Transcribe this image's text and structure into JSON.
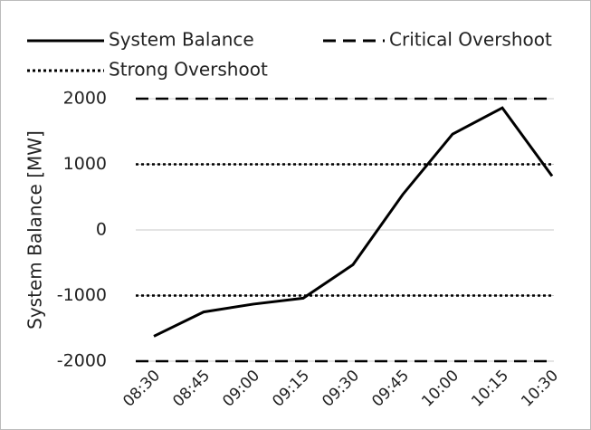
{
  "chart_data": {
    "type": "line",
    "y_label": "System Balance [MW]",
    "categories": [
      "08:30",
      "08:45",
      "09:00",
      "09:15",
      "09:30",
      "09:45",
      "10:00",
      "10:15",
      "10:30"
    ],
    "series": [
      {
        "name": "System Balance",
        "color": "#000000",
        "style": "solid",
        "values": [
          -1620,
          -1250,
          -1130,
          -1040,
          -530,
          540,
          1460,
          1860,
          820
        ]
      },
      {
        "name": "Critical Overshoot",
        "color": "#000000",
        "style": "dashed",
        "levels": [
          2000,
          -2000
        ]
      },
      {
        "name": "Strong Overshoot",
        "color": "#000000",
        "style": "dotted",
        "levels": [
          1000,
          -1000
        ]
      }
    ],
    "ylim": [
      -2000,
      2000
    ],
    "yticks": [
      -2000,
      -1000,
      0,
      1000,
      2000
    ],
    "grid": true
  }
}
